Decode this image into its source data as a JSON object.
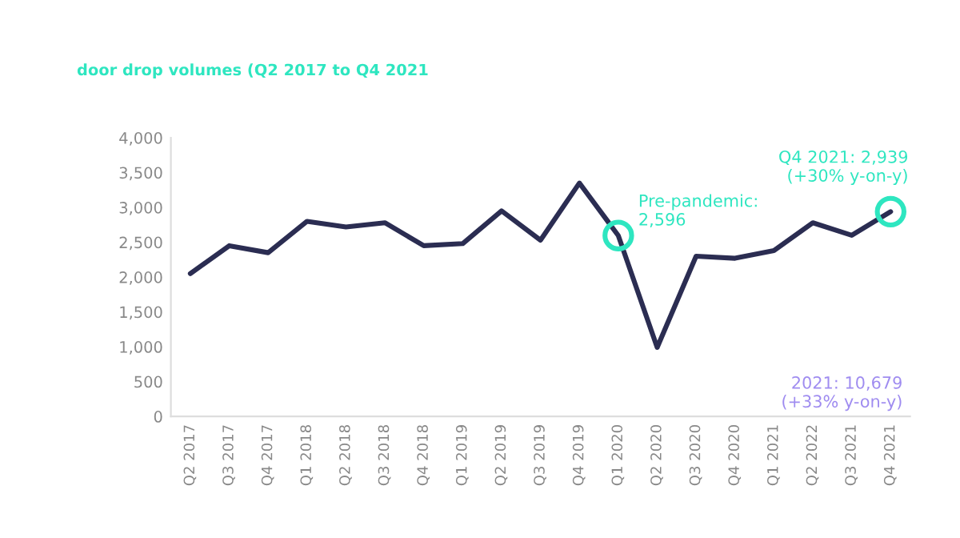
{
  "chart_data": {
    "type": "line",
    "title": "door drop volumes (Q2 2017 to Q4 2021",
    "categories": [
      "Q2 2017",
      "Q3 2017",
      "Q4 2017",
      "Q1 2018",
      "Q2 2018",
      "Q3 2018",
      "Q4 2018",
      "Q1 2019",
      "Q2 2019",
      "Q3 2019",
      "Q4 2019",
      "Q1 2020",
      "Q2 2020",
      "Q3 2020",
      "Q4 2020",
      "Q1 2021",
      "Q2 2022",
      "Q3 2021",
      "Q4 2021"
    ],
    "series": [
      {
        "color": "#2b2d52",
        "values": [
          2050,
          2450,
          2350,
          2800,
          2720,
          2780,
          2450,
          2480,
          2950,
          2530,
          3350,
          2596,
          990,
          2300,
          2270,
          2380,
          2780,
          2600,
          2939
        ]
      }
    ],
    "ylim": [
      0,
      4000
    ],
    "yticks": [
      {
        "value": 0,
        "label": "0"
      },
      {
        "value": 500,
        "label": "500"
      },
      {
        "value": 1000,
        "label": "1,000"
      },
      {
        "value": 1500,
        "label": "1,500"
      },
      {
        "value": 2000,
        "label": "2,000"
      },
      {
        "value": 2500,
        "label": "2,500"
      },
      {
        "value": 3000,
        "label": "3,000"
      },
      {
        "value": 3500,
        "label": "3,500"
      },
      {
        "value": 4000,
        "label": "4,000"
      }
    ],
    "grid": false,
    "legend": false,
    "marker": "none",
    "line_style": "solid",
    "annotations": [
      {
        "text": "Pre-pandemic:\n2,596",
        "x": "Q1 2020",
        "y": 2596
      },
      {
        "text": "Q4 2021: 2,939\n(+30% y-on-y)",
        "x": "Q4 2021",
        "y": 2939
      },
      "2021: 10,679\n(+33% y-on-y)"
    ]
  }
}
